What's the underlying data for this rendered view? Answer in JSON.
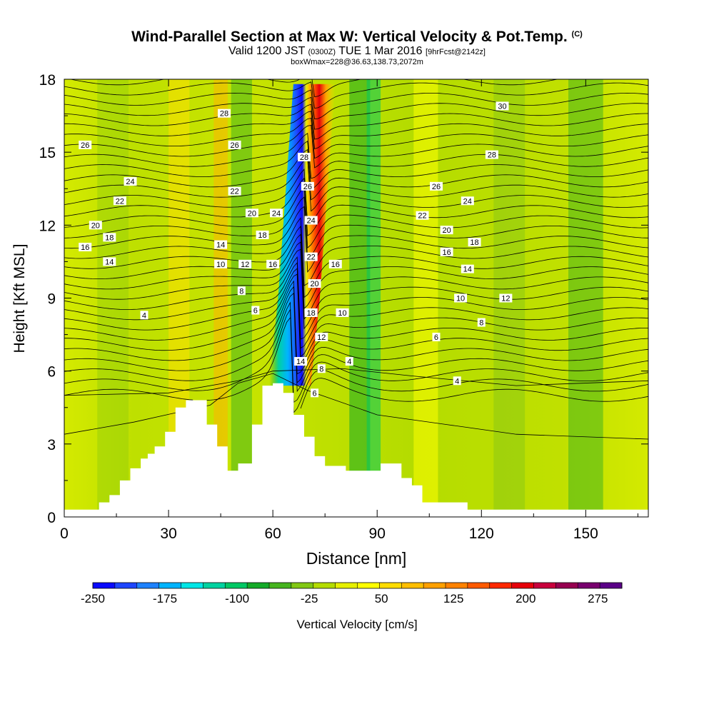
{
  "title": {
    "main": "Wind-Parallel Section at Max W: Vertical Velocity & Pot.Temp.",
    "copyright": "(C)",
    "valid_a": "Valid 1200 JST",
    "valid_utc": "(0300Z)",
    "valid_b": "TUE 1 Mar 2016",
    "forecast": "[9hrFcst@2142z]",
    "box": "boxWmax=228@36.63,138.73,2072m"
  },
  "chart_data": {
    "type": "heatmap",
    "xlabel": "Distance [nm]",
    "ylabel": "Height [Kft MSL]",
    "xlim": [
      0,
      168
    ],
    "ylim": [
      0,
      18
    ],
    "x_ticks": [
      0,
      30,
      60,
      90,
      120,
      150
    ],
    "y_ticks": [
      0,
      3,
      6,
      9,
      12,
      15,
      18
    ],
    "grid": false,
    "colorbar": {
      "label": "Vertical Velocity [cm/s]",
      "range": [
        -250,
        300
      ],
      "step": 25,
      "tick_labels": [
        -250,
        -175,
        -100,
        -25,
        50,
        125,
        200,
        275
      ],
      "colors": [
        "#0a0aff",
        "#1e46ff",
        "#1e82ff",
        "#00b4ff",
        "#00e6e6",
        "#00d2a0",
        "#00c864",
        "#14aa28",
        "#46b41e",
        "#82c814",
        "#b4dc00",
        "#e6f000",
        "#ffff00",
        "#ffdc00",
        "#ffbe00",
        "#ffa000",
        "#ff8200",
        "#ff5a00",
        "#ff2800",
        "#e6000a",
        "#c8003c",
        "#960050",
        "#78006e",
        "#5a0087"
      ]
    },
    "terrain_profile": [
      [
        0,
        0.3
      ],
      [
        10,
        0.3
      ],
      [
        10,
        0.6
      ],
      [
        13,
        0.6
      ],
      [
        13,
        0.9
      ],
      [
        16,
        0.9
      ],
      [
        16,
        1.5
      ],
      [
        19,
        1.5
      ],
      [
        19,
        2.0
      ],
      [
        22,
        2.0
      ],
      [
        22,
        2.4
      ],
      [
        24,
        2.4
      ],
      [
        24,
        2.6
      ],
      [
        26,
        2.6
      ],
      [
        26,
        2.9
      ],
      [
        29,
        2.9
      ],
      [
        29,
        3.5
      ],
      [
        32,
        3.5
      ],
      [
        32,
        4.5
      ],
      [
        35,
        4.5
      ],
      [
        35,
        4.8
      ],
      [
        41,
        4.8
      ],
      [
        41,
        3.8
      ],
      [
        44,
        3.8
      ],
      [
        44,
        2.9
      ],
      [
        47,
        2.9
      ],
      [
        47,
        1.9
      ],
      [
        50,
        1.9
      ],
      [
        50,
        2.2
      ],
      [
        54,
        2.2
      ],
      [
        54,
        3.8
      ],
      [
        57,
        3.8
      ],
      [
        57,
        5.4
      ],
      [
        60,
        5.4
      ],
      [
        60,
        5.5
      ],
      [
        63,
        5.5
      ],
      [
        63,
        5.1
      ],
      [
        66,
        5.1
      ],
      [
        66,
        4.2
      ],
      [
        69,
        4.2
      ],
      [
        69,
        3.3
      ],
      [
        72,
        3.3
      ],
      [
        72,
        2.5
      ],
      [
        75,
        2.5
      ],
      [
        75,
        2.1
      ],
      [
        81,
        2.1
      ],
      [
        81,
        1.9
      ],
      [
        91,
        1.9
      ],
      [
        91,
        2.2
      ],
      [
        97,
        2.2
      ],
      [
        97,
        1.6
      ],
      [
        100,
        1.6
      ],
      [
        100,
        1.3
      ],
      [
        103,
        1.3
      ],
      [
        103,
        0.6
      ],
      [
        116,
        0.6
      ],
      [
        116,
        0.3
      ],
      [
        168,
        0.3
      ]
    ],
    "wmax_axis": [
      [
        65,
        5.6
      ],
      [
        67.5,
        9
      ],
      [
        69,
        12
      ],
      [
        70.5,
        15
      ],
      [
        72,
        18
      ]
    ],
    "isentrope_labels": [
      {
        "text": "26",
        "x": 6,
        "y": 15.3
      },
      {
        "text": "24",
        "x": 19,
        "y": 13.8
      },
      {
        "text": "22",
        "x": 16,
        "y": 13.0
      },
      {
        "text": "20",
        "x": 9,
        "y": 12.0
      },
      {
        "text": "18",
        "x": 13,
        "y": 11.5
      },
      {
        "text": "16",
        "x": 6,
        "y": 11.1
      },
      {
        "text": "14",
        "x": 13,
        "y": 10.5
      },
      {
        "text": "4",
        "x": 23,
        "y": 8.3
      },
      {
        "text": "28",
        "x": 46,
        "y": 16.6
      },
      {
        "text": "26",
        "x": 49,
        "y": 15.3
      },
      {
        "text": "22",
        "x": 49,
        "y": 13.4
      },
      {
        "text": "20",
        "x": 54,
        "y": 12.5
      },
      {
        "text": "14",
        "x": 45,
        "y": 11.2
      },
      {
        "text": "18",
        "x": 57,
        "y": 11.6
      },
      {
        "text": "10",
        "x": 45,
        "y": 10.4
      },
      {
        "text": "12",
        "x": 52,
        "y": 10.4
      },
      {
        "text": "16",
        "x": 60,
        "y": 10.4
      },
      {
        "text": "8",
        "x": 51,
        "y": 9.3
      },
      {
        "text": "6",
        "x": 55,
        "y": 8.5
      },
      {
        "text": "28",
        "x": 69,
        "y": 14.8
      },
      {
        "text": "26",
        "x": 70,
        "y": 13.6
      },
      {
        "text": "24",
        "x": 61,
        "y": 12.5
      },
      {
        "text": "24",
        "x": 71,
        "y": 12.2
      },
      {
        "text": "22",
        "x": 71,
        "y": 10.7
      },
      {
        "text": "20",
        "x": 72,
        "y": 9.6
      },
      {
        "text": "18",
        "x": 71,
        "y": 8.4
      },
      {
        "text": "16",
        "x": 78,
        "y": 10.4
      },
      {
        "text": "10",
        "x": 80,
        "y": 8.4
      },
      {
        "text": "12",
        "x": 74,
        "y": 7.4
      },
      {
        "text": "14",
        "x": 68,
        "y": 6.4
      },
      {
        "text": "8",
        "x": 74,
        "y": 6.1
      },
      {
        "text": "6",
        "x": 72,
        "y": 5.1
      },
      {
        "text": "4",
        "x": 82,
        "y": 6.4
      },
      {
        "text": "30",
        "x": 126,
        "y": 16.9
      },
      {
        "text": "28",
        "x": 123,
        "y": 14.9
      },
      {
        "text": "26",
        "x": 107,
        "y": 13.6
      },
      {
        "text": "24",
        "x": 116,
        "y": 13.0
      },
      {
        "text": "22",
        "x": 103,
        "y": 12.4
      },
      {
        "text": "20",
        "x": 110,
        "y": 11.8
      },
      {
        "text": "18",
        "x": 118,
        "y": 11.3
      },
      {
        "text": "16",
        "x": 110,
        "y": 10.9
      },
      {
        "text": "14",
        "x": 116,
        "y": 10.2
      },
      {
        "text": "10",
        "x": 114,
        "y": 9.0
      },
      {
        "text": "12",
        "x": 127,
        "y": 9.0
      },
      {
        "text": "8",
        "x": 120,
        "y": 8.0
      },
      {
        "text": "6",
        "x": 107,
        "y": 7.4
      },
      {
        "text": "4",
        "x": 113,
        "y": 5.6
      }
    ]
  }
}
